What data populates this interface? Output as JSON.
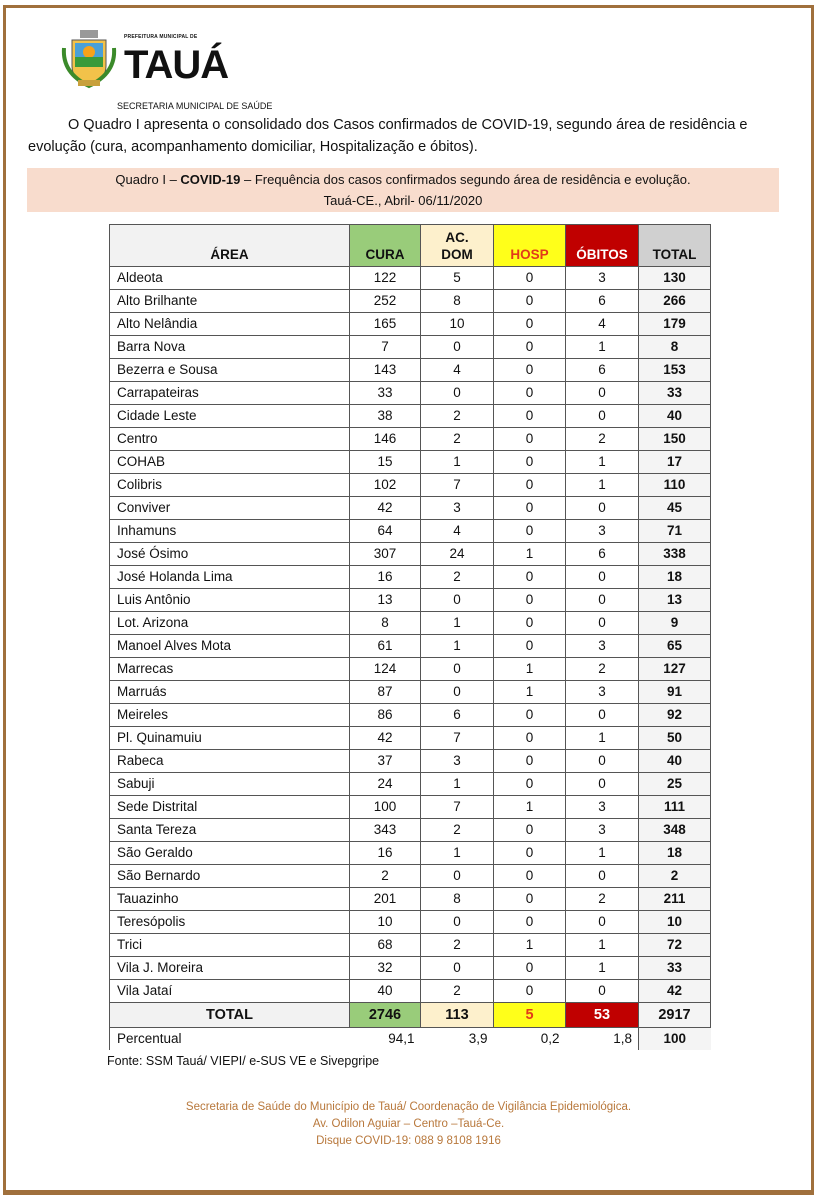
{
  "header": {
    "brand_small": "PREFEITURA MUNICIPAL DE",
    "brand_name": "TAUÁ",
    "secretaria": "SECRETARIA MUNICIPAL DE SAÚDE"
  },
  "intro": "O Quadro I apresenta o consolidado dos Casos confirmados de COVID-19, segundo área de residência e evolução (cura, acompanhamento domiciliar, Hospitalização e óbitos).",
  "quadro": {
    "prefix": "Quadro I – ",
    "bold": "COVID-19",
    "suffix": " – Frequência dos casos confirmados segundo área de residência e evolução.",
    "line2": "Tauá-CE., Abril- 06/11/2020"
  },
  "table": {
    "headers": {
      "area": "ÁREA",
      "cura": "CURA",
      "acdom_1": "AC.",
      "acdom_2": "DOM",
      "hosp": "HOSP",
      "obitos": "ÓBITOS",
      "total": "TOTAL"
    },
    "rows": [
      [
        "Aldeota",
        122,
        5,
        0,
        3,
        130
      ],
      [
        "Alto Brilhante",
        252,
        8,
        0,
        6,
        266
      ],
      [
        "Alto Nelândia",
        165,
        10,
        0,
        4,
        179
      ],
      [
        "Barra Nova",
        7,
        0,
        0,
        1,
        8
      ],
      [
        "Bezerra e Sousa",
        143,
        4,
        0,
        6,
        153
      ],
      [
        "Carrapateiras",
        33,
        0,
        0,
        0,
        33
      ],
      [
        "Cidade Leste",
        38,
        2,
        0,
        0,
        40
      ],
      [
        "Centro",
        146,
        2,
        0,
        2,
        150
      ],
      [
        "COHAB",
        15,
        1,
        0,
        1,
        17
      ],
      [
        "Colibris",
        102,
        7,
        0,
        1,
        110
      ],
      [
        "Conviver",
        42,
        3,
        0,
        0,
        45
      ],
      [
        "Inhamuns",
        64,
        4,
        0,
        3,
        71
      ],
      [
        "José Ósimo",
        307,
        24,
        1,
        6,
        338
      ],
      [
        "José Holanda Lima",
        16,
        2,
        0,
        0,
        18
      ],
      [
        "Luis Antônio",
        13,
        0,
        0,
        0,
        13
      ],
      [
        "Lot. Arizona",
        8,
        1,
        0,
        0,
        9
      ],
      [
        "Manoel Alves Mota",
        61,
        1,
        0,
        3,
        65
      ],
      [
        "Marrecas",
        124,
        0,
        1,
        2,
        127
      ],
      [
        "Marruás",
        87,
        0,
        1,
        3,
        91
      ],
      [
        "Meireles",
        86,
        6,
        0,
        0,
        92
      ],
      [
        "Pl. Quinamuiu",
        42,
        7,
        0,
        1,
        50
      ],
      [
        "Rabeca",
        37,
        3,
        0,
        0,
        40
      ],
      [
        "Sabuji",
        24,
        1,
        0,
        0,
        25
      ],
      [
        "Sede Distrital",
        100,
        7,
        1,
        3,
        111
      ],
      [
        "Santa Tereza",
        343,
        2,
        0,
        3,
        348
      ],
      [
        "São Geraldo",
        16,
        1,
        0,
        1,
        18
      ],
      [
        "São Bernardo",
        2,
        0,
        0,
        0,
        2
      ],
      [
        "Tauazinho",
        201,
        8,
        0,
        2,
        211
      ],
      [
        "Teresópolis",
        10,
        0,
        0,
        0,
        10
      ],
      [
        "Trici",
        68,
        2,
        1,
        1,
        72
      ],
      [
        "Vila J. Moreira",
        32,
        0,
        0,
        1,
        33
      ],
      [
        "Vila Jataí",
        40,
        2,
        0,
        0,
        42
      ]
    ],
    "total": {
      "label": "TOTAL",
      "cura": "2746",
      "acdom": "113",
      "hosp": "5",
      "obitos": "53",
      "total": "2917"
    },
    "percentual": {
      "label": "Percentual",
      "cura": "94,1",
      "acdom": "3,9",
      "hosp": "0,2",
      "obitos": "1,8",
      "total": "100"
    }
  },
  "fonte": "Fonte: SSM Tauá/ VIEPI/ e-SUS VE e Sivepgripe",
  "footer": {
    "line1": "Secretaria de Saúde do Município de Tauá/ Coordenação de Vigilância Epidemiológica.",
    "line2": "Av. Odilon Aguiar – Centro –Tauá-Ce.",
    "line3": "Disque COVID-19: 088 9 8108 1916"
  },
  "colors": {
    "cura": "#99cc7a",
    "acdom": "#fdf0cc",
    "hosp": "#ffff1a",
    "obitos": "#c00000",
    "frame": "#a0703c",
    "quadro_bg": "#f8dccd"
  }
}
